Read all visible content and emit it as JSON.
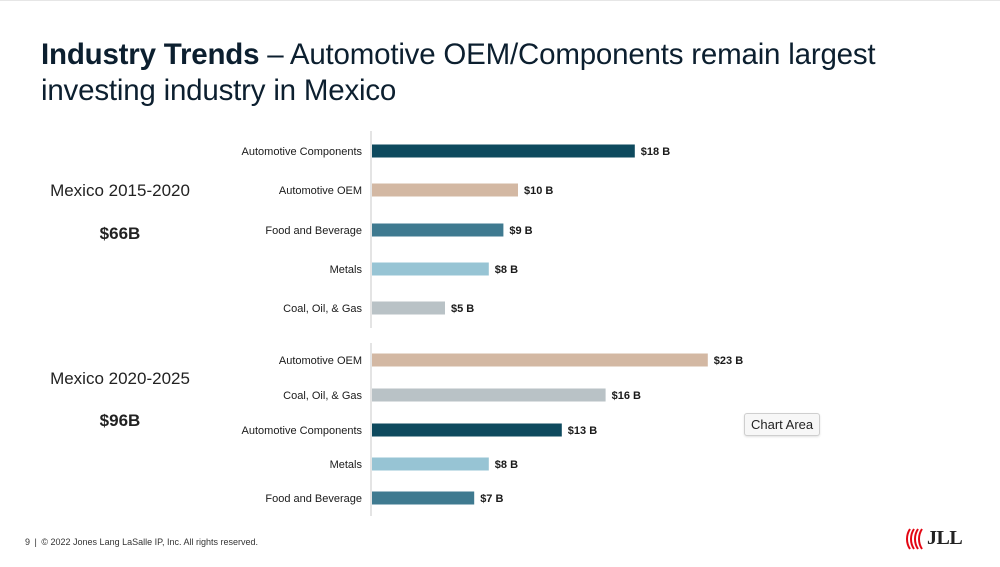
{
  "slide": {
    "title_bold": "Industry Trends",
    "title_rest": " – Automotive OEM/Components remain largest investing industry in Mexico",
    "footer_page": "9",
    "footer_sep": "|",
    "footer_text": "© 2022 Jones Lang LaSalle IP, Inc. All rights reserved.",
    "tooltip": "Chart Area",
    "logo_text": "JLL"
  },
  "colors": {
    "Automotive Components": "#0e4a5e",
    "Automotive OEM": "#d3b8a3",
    "Food and Beverage": "#3f7a90",
    "Metals": "#97c4d4",
    "Coal, Oil, & Gas": "#b9c2c6",
    "axis": "#c8c8c8",
    "logo_red": "#e30613"
  },
  "chart_data": [
    {
      "type": "bar",
      "orientation": "horizontal",
      "group_label": "Mexico 2015-2020",
      "total": "$66B",
      "categories": [
        "Automotive Components",
        "Automotive OEM",
        "Food and Beverage",
        "Metals",
        "Coal, Oil, & Gas"
      ],
      "values": [
        18,
        10,
        9,
        8,
        5
      ],
      "value_labels": [
        "$18 B",
        "$10 B",
        "$9 B",
        "$8 B",
        "$5 B"
      ],
      "units": "USD billions",
      "xlim": [
        0,
        25
      ]
    },
    {
      "type": "bar",
      "orientation": "horizontal",
      "group_label": "Mexico 2020-2025",
      "total": "$96B",
      "categories": [
        "Automotive OEM",
        "Coal, Oil, & Gas",
        "Automotive Components",
        "Metals",
        "Food and Beverage"
      ],
      "values": [
        23,
        16,
        13,
        8,
        7
      ],
      "value_labels": [
        "$23 B",
        "$16 B",
        "$13 B",
        "$8 B",
        "$7 B"
      ],
      "units": "USD billions",
      "xlim": [
        0,
        25
      ]
    }
  ]
}
